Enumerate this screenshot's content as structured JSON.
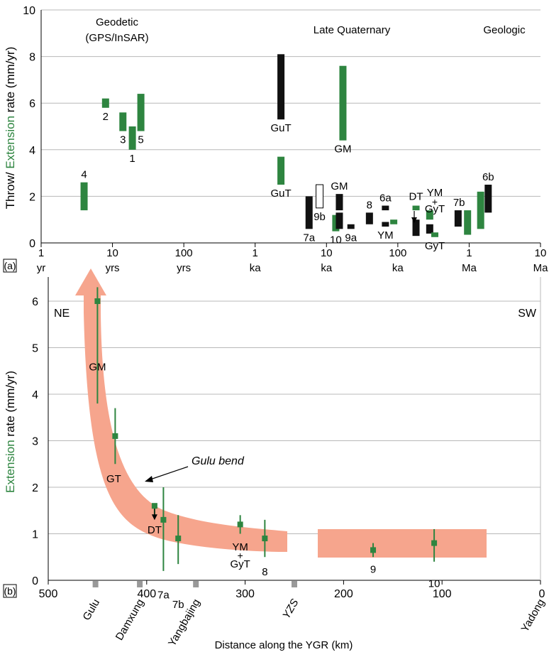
{
  "colors": {
    "green": "#2e8540",
    "black": "#111111",
    "salmon": "#f6a58d",
    "grid": "#b8b8b8",
    "tick_gray": "#999999"
  },
  "chart_data": [
    {
      "panel": "(a)",
      "type": "bar",
      "ylabel_prefix": "Throw/",
      "ylabel_green": "Extension",
      "ylabel_suffix": "rate (mm/yr)",
      "ylim": [
        0,
        10
      ],
      "yticks": [
        "0",
        "2",
        "4",
        "6",
        "8",
        "10"
      ],
      "x_scale": "log",
      "x_ticks": [
        {
          "num": "1",
          "unit": "yr"
        },
        {
          "num": "10",
          "unit": "yrs"
        },
        {
          "num": "100",
          "unit": "yrs"
        },
        {
          "num": "1",
          "unit": "ka"
        },
        {
          "num": "10",
          "unit": "ka"
        },
        {
          "num": "100",
          "unit": "ka"
        },
        {
          "num": "1",
          "unit": "Ma"
        },
        {
          "num": "10",
          "unit": "Ma"
        }
      ],
      "section_labels": [
        "Geodetic",
        "(GPS/InSAR)",
        "Late Quaternary",
        "Geologic"
      ],
      "bars": [
        {
          "label": "4",
          "years": 4,
          "low": 1.4,
          "high": 2.6,
          "color": "green"
        },
        {
          "label": "2",
          "years": 8,
          "low": 5.8,
          "high": 6.2,
          "color": "green"
        },
        {
          "label": "3",
          "years": 14,
          "low": 4.8,
          "high": 5.6,
          "color": "green"
        },
        {
          "label": "1",
          "years": 19,
          "low": 4.0,
          "high": 5.0,
          "color": "green"
        },
        {
          "label": "5",
          "years": 25,
          "low": 4.8,
          "high": 6.4,
          "color": "green"
        },
        {
          "label": "GuT",
          "years": 2300,
          "low": 5.3,
          "high": 8.1,
          "color": "black"
        },
        {
          "label": "GuT",
          "years": 2300,
          "low": 2.5,
          "high": 3.7,
          "color": "green"
        },
        {
          "label": "GM",
          "years": 17000,
          "low": 4.4,
          "high": 7.6,
          "color": "green"
        },
        {
          "label": "7a",
          "years": 5700,
          "low": 0.6,
          "high": 2.0,
          "color": "black"
        },
        {
          "label": "9b",
          "years": 8000,
          "low": 1.5,
          "high": 2.5,
          "color": "white"
        },
        {
          "label": "10",
          "years": 13500,
          "low": 0.5,
          "high": 1.2,
          "color": "green"
        },
        {
          "label": "GM",
          "years": 17000,
          "low": 1.4,
          "high": 2.1,
          "color": "black"
        },
        {
          "label": "",
          "years": 17000,
          "low": 0.6,
          "high": 1.3,
          "color": "black"
        },
        {
          "label": "9a",
          "years": 22000,
          "low": 0.6,
          "high": 0.8,
          "color": "black"
        },
        {
          "label": "8",
          "years": 40000,
          "low": 0.8,
          "high": 1.3,
          "color": "black"
        },
        {
          "label": "6a",
          "years": 67000,
          "low": 1.4,
          "high": 1.6,
          "color": "black"
        },
        {
          "label": "YM",
          "years": 67000,
          "low": 0.7,
          "high": 0.9,
          "color": "black"
        },
        {
          "label": "",
          "years": 80000,
          "low": 0.8,
          "high": 1.0,
          "color": "green"
        },
        {
          "label": "DT",
          "years": 180000,
          "low": 1.4,
          "high": 1.6,
          "color": "green"
        },
        {
          "label": "",
          "years": 180000,
          "low": 0.3,
          "high": 1.0,
          "color": "black"
        },
        {
          "label": "",
          "years": 280000,
          "low": 1.0,
          "high": 1.4,
          "color": "green"
        },
        {
          "label": "",
          "years": 280000,
          "low": 0.4,
          "high": 0.8,
          "color": "black"
        },
        {
          "label": "GyT",
          "years": 330000,
          "low": 0.25,
          "high": 0.45,
          "color": "green"
        },
        {
          "label": "",
          "years": 700000,
          "low": 0.7,
          "high": 1.4,
          "color": "black"
        },
        {
          "label": "7b",
          "years": 950000,
          "low": 0.35,
          "high": 1.4,
          "color": "green"
        },
        {
          "label": "",
          "years": 1450000,
          "low": 0.6,
          "high": 2.2,
          "color": "green"
        },
        {
          "label": "6b",
          "years": 1850000,
          "low": 1.3,
          "high": 2.5,
          "color": "black"
        }
      ],
      "extra_labels": [
        {
          "text": "YM",
          "years": 330000,
          "y": 2.2
        },
        {
          "text": "+",
          "years": 330000,
          "y": 1.8
        },
        {
          "text": "GyT",
          "years": 330000,
          "y": 1.5
        }
      ]
    },
    {
      "panel": "(b)",
      "type": "scatter",
      "ylabel_green": "Extension",
      "ylabel_suffix": "rate (mm/yr)",
      "xlabel": "Distance along the YGR (km)",
      "xlim": [
        500,
        0
      ],
      "ylim": [
        0,
        6
      ],
      "yticks": [
        "0",
        "1",
        "2",
        "3",
        "4",
        "5",
        "6"
      ],
      "xticks": [
        {
          "value": 500,
          "label": "500"
        },
        {
          "value": 400,
          "label": "400"
        },
        {
          "value": 300,
          "label": "300"
        },
        {
          "value": 200,
          "label": "200"
        },
        {
          "value": 100,
          "label": "100"
        },
        {
          "value": 0,
          "label": "0"
        }
      ],
      "corner_labels": [
        "NE",
        "SW"
      ],
      "places": [
        {
          "name": "Gulu",
          "km": 452
        },
        {
          "name": "Damxung",
          "km": 407
        },
        {
          "name": "Yangbajing",
          "km": 350
        },
        {
          "name": "YZS",
          "km": 250,
          "italic": true
        },
        {
          "name": "Yadong",
          "km": 0
        }
      ],
      "points": [
        {
          "label": "GM",
          "km": 450,
          "y": 6.0,
          "low": 3.8,
          "high": 6.3
        },
        {
          "label": "GT",
          "km": 432,
          "y": 3.1,
          "low": 2.5,
          "high": 3.7
        },
        {
          "label": "DT",
          "km": 392,
          "y": 1.6,
          "low": 1.4,
          "high": 1.6,
          "arrow": true
        },
        {
          "label": "7a",
          "km": 383,
          "y": 1.3,
          "low": 0.2,
          "high": 2.0
        },
        {
          "label": "7b",
          "km": 368,
          "y": 0.9,
          "low": 0.35,
          "high": 1.4
        },
        {
          "label": "YM + GyT",
          "km": 305,
          "y": 1.2,
          "low": 1.0,
          "high": 1.4
        },
        {
          "label": "8",
          "km": 280,
          "y": 0.9,
          "low": 0.5,
          "high": 1.3
        },
        {
          "label": "9",
          "km": 170,
          "y": 0.65,
          "low": 0.5,
          "high": 0.8
        },
        {
          "label": "10",
          "km": 108,
          "y": 0.8,
          "low": 0.4,
          "high": 1.1
        }
      ],
      "annotation": "Gulu bend"
    }
  ]
}
